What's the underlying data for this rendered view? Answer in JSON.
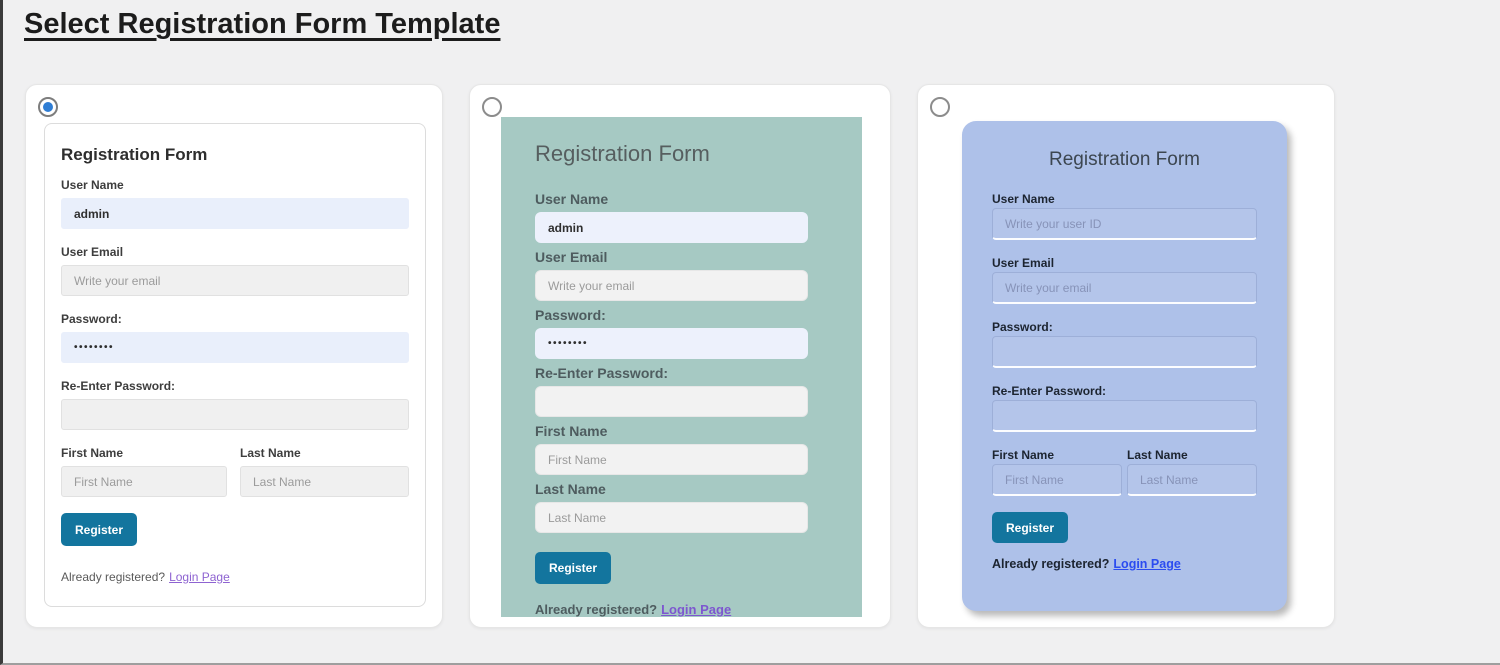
{
  "page": {
    "title": "Select Registration Form Template"
  },
  "colors": {
    "page_background": "#f0f0f1",
    "radio_selected": "#2f7dd4",
    "register_button": "#13759e",
    "template2_background": "#a6c9c3",
    "template3_background": "#aec1e9",
    "input_filled_background": "#e9effb",
    "input_gray_background": "#f0f0f0",
    "link_purple": "#8e63d1",
    "link_purple_bold": "#7d57cf",
    "link_blue": "#2b4cf0"
  },
  "templates": [
    {
      "selected": true,
      "form": {
        "title": "Registration Form",
        "username": {
          "label": "User Name",
          "value": "admin"
        },
        "email": {
          "label": "User Email",
          "placeholder": "Write your email"
        },
        "password": {
          "label": "Password:",
          "value": "••••••••"
        },
        "repassword": {
          "label": "Re-Enter Password:"
        },
        "firstname": {
          "label": "First Name",
          "placeholder": "First Name"
        },
        "lastname": {
          "label": "Last Name",
          "placeholder": "Last Name"
        },
        "register_label": "Register",
        "footer_text": "Already registered?",
        "footer_link_label": "Login Page"
      }
    },
    {
      "selected": false,
      "form": {
        "title": "Registration Form",
        "username": {
          "label": "User Name",
          "value": "admin"
        },
        "email": {
          "label": "User Email",
          "placeholder": "Write your email"
        },
        "password": {
          "label": "Password:",
          "value": "••••••••"
        },
        "repassword": {
          "label": "Re-Enter Password:"
        },
        "firstname": {
          "label": "First Name",
          "placeholder": "First Name"
        },
        "lastname": {
          "label": "Last Name",
          "placeholder": "Last Name"
        },
        "register_label": "Register",
        "footer_text": "Already registered?",
        "footer_link_label": "Login Page"
      }
    },
    {
      "selected": false,
      "form": {
        "title": "Registration Form",
        "username": {
          "label": "User Name",
          "placeholder": "Write your user ID"
        },
        "email": {
          "label": "User Email",
          "placeholder": "Write your email"
        },
        "password": {
          "label": "Password:"
        },
        "repassword": {
          "label": "Re-Enter Password:"
        },
        "firstname": {
          "label": "First Name",
          "placeholder": "First Name"
        },
        "lastname": {
          "label": "Last Name",
          "placeholder": "Last Name"
        },
        "register_label": "Register",
        "footer_text": "Already registered?",
        "footer_link_label": "Login Page"
      }
    }
  ]
}
